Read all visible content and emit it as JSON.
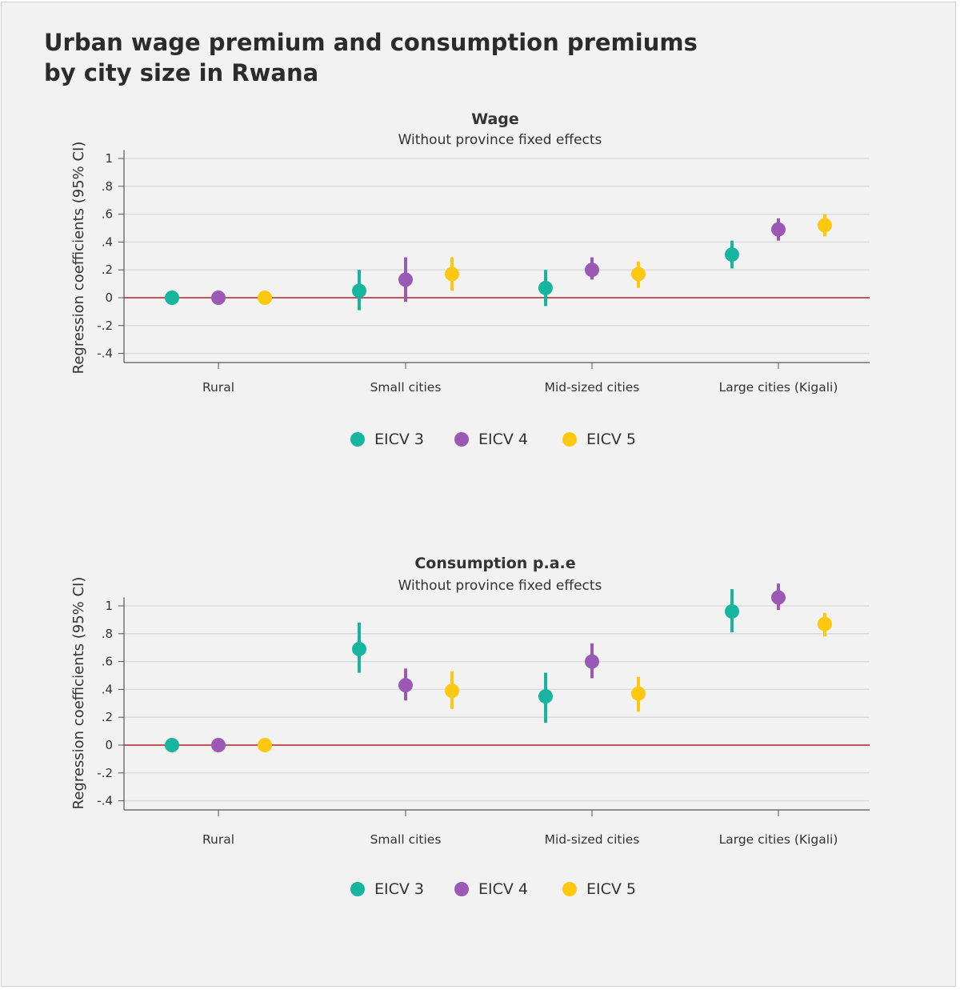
{
  "title_lines": [
    "Urban wage premium and consumption premiums",
    "by city size in Rwana"
  ],
  "colors": {
    "EICV 3": "#17b5a0",
    "EICV 4": "#9b59b6",
    "EICV 5": "#fdc80f",
    "zero_line": "#b22222",
    "grid": "#dcdcdc",
    "axis": "#555555"
  },
  "chart_data": [
    {
      "type": "scatter",
      "title": "Wage",
      "subtitle": "Without province fixed effects",
      "ylabel": "Regression coefficients (95% CI)",
      "ylim": [
        -0.46,
        1.06
      ],
      "yticks": [
        1,
        0.8,
        0.6,
        0.4,
        0.2,
        0,
        -0.2,
        -0.4
      ],
      "ytick_labels": [
        "1",
        ".8",
        ".6",
        ".4",
        ".2",
        "0",
        "-.2",
        "-.4"
      ],
      "categories": [
        "Rural",
        "Small cities",
        "Mid-sized cities",
        "Large cities (Kigali)"
      ],
      "reference_line": 0,
      "grid": true,
      "legend_position": "bottom",
      "series": [
        {
          "name": "EICV 3",
          "values": [
            0,
            0.05,
            0.07,
            0.31
          ],
          "ci_low": [
            0,
            -0.09,
            -0.06,
            0.21
          ],
          "ci_high": [
            0,
            0.2,
            0.2,
            0.41
          ]
        },
        {
          "name": "EICV 4",
          "values": [
            0,
            0.13,
            0.2,
            0.49
          ],
          "ci_low": [
            0,
            -0.03,
            0.13,
            0.41
          ],
          "ci_high": [
            0,
            0.29,
            0.29,
            0.57
          ]
        },
        {
          "name": "EICV 5",
          "values": [
            0,
            0.17,
            0.17,
            0.52
          ],
          "ci_low": [
            0,
            0.05,
            0.07,
            0.44
          ],
          "ci_high": [
            0,
            0.29,
            0.26,
            0.6
          ]
        }
      ]
    },
    {
      "type": "scatter",
      "title": "Consumption p.a.e",
      "subtitle": "Without province fixed effects",
      "ylabel": "Regression coefficients (95% CI)",
      "ylim": [
        -0.46,
        1.06
      ],
      "yticks": [
        1,
        0.8,
        0.6,
        0.4,
        0.2,
        0,
        -0.2,
        -0.4
      ],
      "ytick_labels": [
        "1",
        ".8",
        ".6",
        ".4",
        ".2",
        "0",
        "-.2",
        "-.4"
      ],
      "categories": [
        "Rural",
        "Small cities",
        "Mid-sized cities",
        "Large cities (Kigali)"
      ],
      "reference_line": 0,
      "grid": true,
      "legend_position": "bottom",
      "series": [
        {
          "name": "EICV 3",
          "values": [
            0,
            0.69,
            0.35,
            0.96
          ],
          "ci_low": [
            0,
            0.52,
            0.16,
            0.81
          ],
          "ci_high": [
            0,
            0.88,
            0.52,
            1.12
          ]
        },
        {
          "name": "EICV 4",
          "values": [
            0,
            0.43,
            0.6,
            1.06
          ],
          "ci_low": [
            0,
            0.32,
            0.48,
            0.97
          ],
          "ci_high": [
            0,
            0.55,
            0.73,
            1.16
          ]
        },
        {
          "name": "EICV 5",
          "values": [
            0,
            0.39,
            0.37,
            0.87
          ],
          "ci_low": [
            0,
            0.26,
            0.24,
            0.78
          ],
          "ci_high": [
            0,
            0.53,
            0.49,
            0.95
          ]
        }
      ]
    }
  ]
}
